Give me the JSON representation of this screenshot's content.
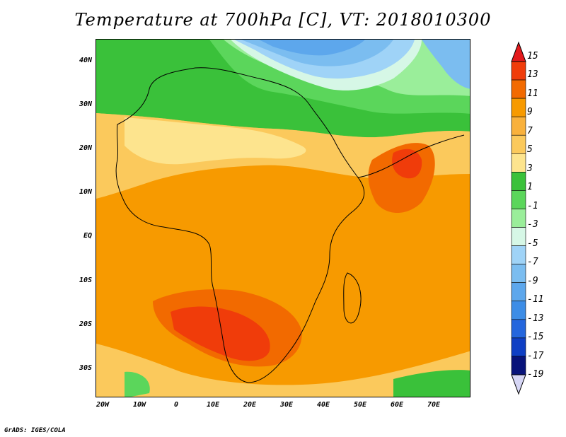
{
  "title": "Temperature at 700hPa [C], VT: 2018010300",
  "credit": "GrADS: IGES/COLA",
  "latitude_labels": [
    "40N",
    "30N",
    "20N",
    "10N",
    "EQ",
    "10S",
    "20S",
    "30S"
  ],
  "longitude_labels": [
    "20W",
    "10W",
    "0",
    "10E",
    "20E",
    "30E",
    "40E",
    "50E",
    "60E",
    "70E"
  ],
  "colorbar": {
    "labels": [
      "15",
      "13",
      "11",
      "9",
      "7",
      "5",
      "3",
      "1",
      "-1",
      "-3",
      "-5",
      "-7",
      "-9",
      "-11",
      "-13",
      "-15",
      "-17",
      "-19"
    ],
    "colors": [
      "#e31a1c",
      "#f03c0a",
      "#f26a00",
      "#f79a00",
      "#f9b13c",
      "#fbc95c",
      "#fde48e",
      "#3ac13a",
      "#5bd65b",
      "#9aee9a",
      "#d6f7e6",
      "#9fd3f7",
      "#7bbdf0",
      "#5da7ec",
      "#3d8de6",
      "#2466dd",
      "#0f3fc4",
      "#08137a",
      "#d6d6f5"
    ]
  }
}
